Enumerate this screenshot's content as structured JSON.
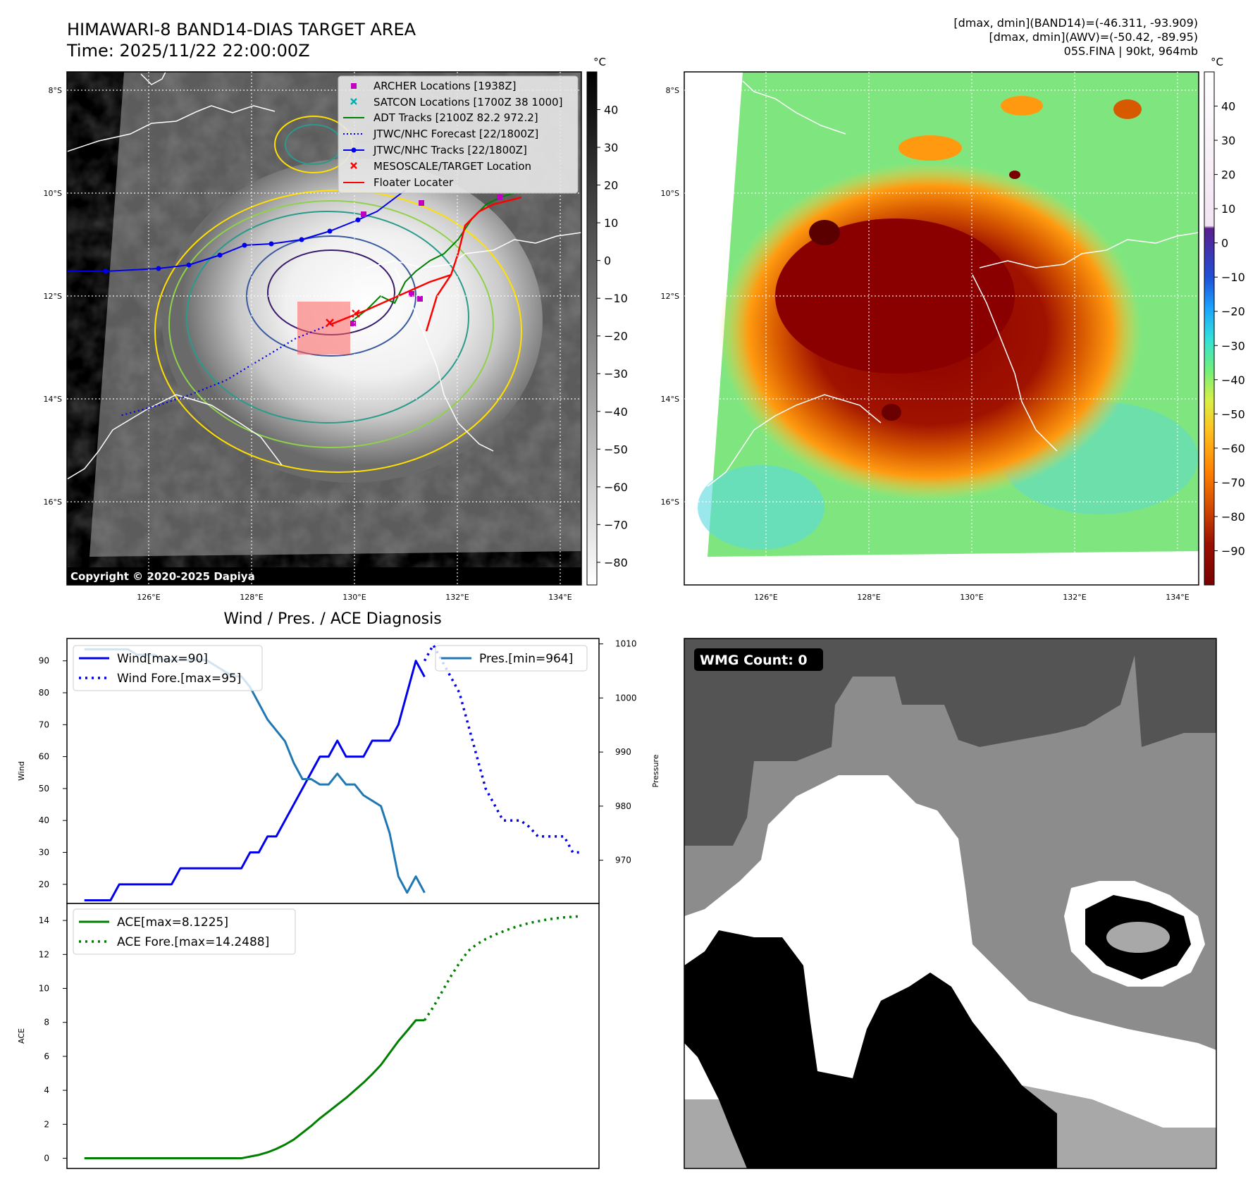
{
  "header": {
    "title_line1": "HIMAWARI-8 BAND14-DIAS TARGET AREA",
    "title_line2": "Time: 2025/11/22 22:00:00Z",
    "stats_line1": "[dmax, dmin](BAND14)=(-46.311, -93.909)",
    "stats_line2": "[dmax, dmin](AWV)=(-50.42, -89.95)",
    "stats_line3": "05S.FINA | 90kt, 964mb"
  },
  "map_panel": {
    "lat_labels": [
      "8°S",
      "10°S",
      "12°S",
      "14°S",
      "16°S"
    ],
    "lon_labels": [
      "126°E",
      "128°E",
      "130°E",
      "132°E",
      "134°E"
    ],
    "copyright": "Copyright © 2020-2025 Dapiya",
    "legend": [
      {
        "label": "ARCHER Locations [1938Z]",
        "marker": "square",
        "color": "#c000c0"
      },
      {
        "label": "SATCON Locations [1700Z 38 1000]",
        "marker": "x",
        "color": "#00b0b0"
      },
      {
        "label": "ADT Tracks [2100Z 82.2 972.2]",
        "marker": "line",
        "color": "#008000"
      },
      {
        "label": "JTWC/NHC Forecast [22/1800Z]",
        "marker": "dotted",
        "color": "#0000ff"
      },
      {
        "label": "JTWC/NHC Tracks [22/1800Z]",
        "marker": "line-dot",
        "color": "#0000ff"
      },
      {
        "label": "MESOSCALE/TARGET Location",
        "marker": "x",
        "color": "#ff0000"
      },
      {
        "label": "Floater Locater",
        "marker": "line",
        "color": "#ff0000"
      }
    ]
  },
  "colorbar_gray": {
    "unit": "°C",
    "ticks": [
      "40",
      "30",
      "20",
      "10",
      "0",
      "−10",
      "−20",
      "−30",
      "−40",
      "−50",
      "−60",
      "−70",
      "−80"
    ]
  },
  "colorbar_color": {
    "unit": "°C",
    "ticks": [
      "40",
      "30",
      "20",
      "10",
      "0",
      "−10",
      "−20",
      "−30",
      "−40",
      "−50",
      "−60",
      "−70",
      "−80",
      "−90"
    ]
  },
  "diagnosis": {
    "title": "Wind / Pres. / ACE Diagnosis",
    "wind_ylabel": "Wind",
    "pres_ylabel": "Pressure",
    "ace_ylabel": "ACE",
    "wind_ticks": [
      "90",
      "80",
      "70",
      "60",
      "50",
      "40",
      "30",
      "20"
    ],
    "pres_ticks": [
      "1010",
      "1000",
      "990",
      "980",
      "970"
    ],
    "ace_ticks": [
      "14",
      "12",
      "10",
      "8",
      "6",
      "4",
      "2",
      "0"
    ],
    "legend_wind": "Wind[max=90]",
    "legend_wind_fore": "Wind Fore.[max=95]",
    "legend_pres": "Pres.[min=964]",
    "legend_ace": "ACE[max=8.1225]",
    "legend_ace_fore": "ACE Fore.[max=14.2488]"
  },
  "wmg_panel": {
    "label": "WMG Count: 0"
  },
  "colors": {
    "wind": "#0000ee",
    "pressure": "#1f77b4",
    "ace": "#007f00"
  },
  "chart_data": [
    {
      "type": "line",
      "name": "wind",
      "ylim": [
        14,
        97
      ],
      "series": [
        {
          "name": "Wind[max=90]",
          "x": [
            0,
            1,
            2,
            3,
            4,
            5,
            6,
            7,
            8,
            9,
            10,
            11,
            12,
            13,
            14,
            15,
            16,
            17,
            18,
            19,
            20,
            21,
            22,
            23,
            24,
            25,
            26,
            27,
            28,
            29,
            30,
            31,
            32,
            33,
            34,
            35,
            36,
            37,
            38,
            39
          ],
          "values": [
            15,
            15,
            15,
            15,
            20,
            20,
            20,
            20,
            20,
            20,
            20,
            25,
            25,
            25,
            25,
            25,
            25,
            25,
            25,
            30,
            30,
            35,
            35,
            40,
            45,
            50,
            55,
            60,
            60,
            65,
            60,
            60,
            60,
            65,
            65,
            65,
            70,
            80,
            90,
            85
          ]
        },
        {
          "name": "Wind Fore.[max=95]",
          "x": [
            39,
            40,
            41,
            42,
            43,
            44,
            45,
            46,
            47,
            48,
            49,
            50,
            51,
            52,
            53,
            54,
            55,
            56,
            57
          ],
          "values": [
            90,
            95,
            90,
            85,
            80,
            70,
            60,
            50,
            45,
            40,
            40,
            40,
            38,
            35,
            35,
            35,
            35,
            30,
            30
          ]
        }
      ]
    },
    {
      "type": "line",
      "name": "pressure",
      "ylim": [
        962,
        1011
      ],
      "series": [
        {
          "name": "Pres.[min=964]",
          "x": [
            0,
            1,
            2,
            3,
            4,
            5,
            6,
            7,
            8,
            9,
            10,
            11,
            12,
            13,
            14,
            15,
            16,
            17,
            18,
            19,
            20,
            21,
            22,
            23,
            24,
            25,
            26,
            27,
            28,
            29,
            30,
            31,
            32,
            33,
            34,
            35,
            36,
            37,
            38,
            39,
            40
          ],
          "values": [
            1009,
            1009,
            1009,
            1009,
            1009,
            1009,
            1008,
            1008,
            1008,
            1007,
            1007,
            1007,
            1007,
            1007,
            1007,
            1006,
            1005,
            1004,
            1004,
            1002,
            999,
            996,
            994,
            992,
            988,
            985,
            985,
            984,
            984,
            986,
            984,
            984,
            982,
            981,
            980,
            975,
            967,
            964,
            967,
            964,
            null
          ]
        }
      ]
    },
    {
      "type": "line",
      "name": "ace",
      "ylim": [
        -0.6,
        15
      ],
      "series": [
        {
          "name": "ACE[max=8.1225]",
          "x": [
            0,
            1,
            2,
            3,
            4,
            5,
            6,
            7,
            8,
            9,
            10,
            11,
            12,
            13,
            14,
            15,
            16,
            17,
            18,
            19,
            20,
            21,
            22,
            23,
            24,
            25,
            26,
            27,
            28,
            29,
            30,
            31,
            32,
            33,
            34,
            35,
            36,
            37,
            38,
            39
          ],
          "values": [
            0,
            0,
            0,
            0,
            0,
            0,
            0,
            0,
            0,
            0,
            0,
            0,
            0,
            0,
            0,
            0,
            0,
            0,
            0,
            0.1,
            0.2,
            0.35,
            0.55,
            0.8,
            1.1,
            1.5,
            1.9,
            2.35,
            2.75,
            3.15,
            3.55,
            4.0,
            4.45,
            4.95,
            5.5,
            6.2,
            6.9,
            7.5,
            8.1225,
            8.1225
          ]
        },
        {
          "name": "ACE Fore.[max=14.2488]",
          "x": [
            39,
            40,
            41,
            42,
            43,
            44,
            45,
            46,
            47,
            48,
            49,
            50,
            51,
            52,
            53,
            54,
            55,
            56,
            57
          ],
          "values": [
            8.1225,
            8.9,
            9.8,
            10.7,
            11.5,
            12.2,
            12.6,
            12.9,
            13.15,
            13.35,
            13.55,
            13.7,
            13.85,
            13.95,
            14.05,
            14.12,
            14.18,
            14.22,
            14.2488
          ]
        }
      ]
    }
  ]
}
